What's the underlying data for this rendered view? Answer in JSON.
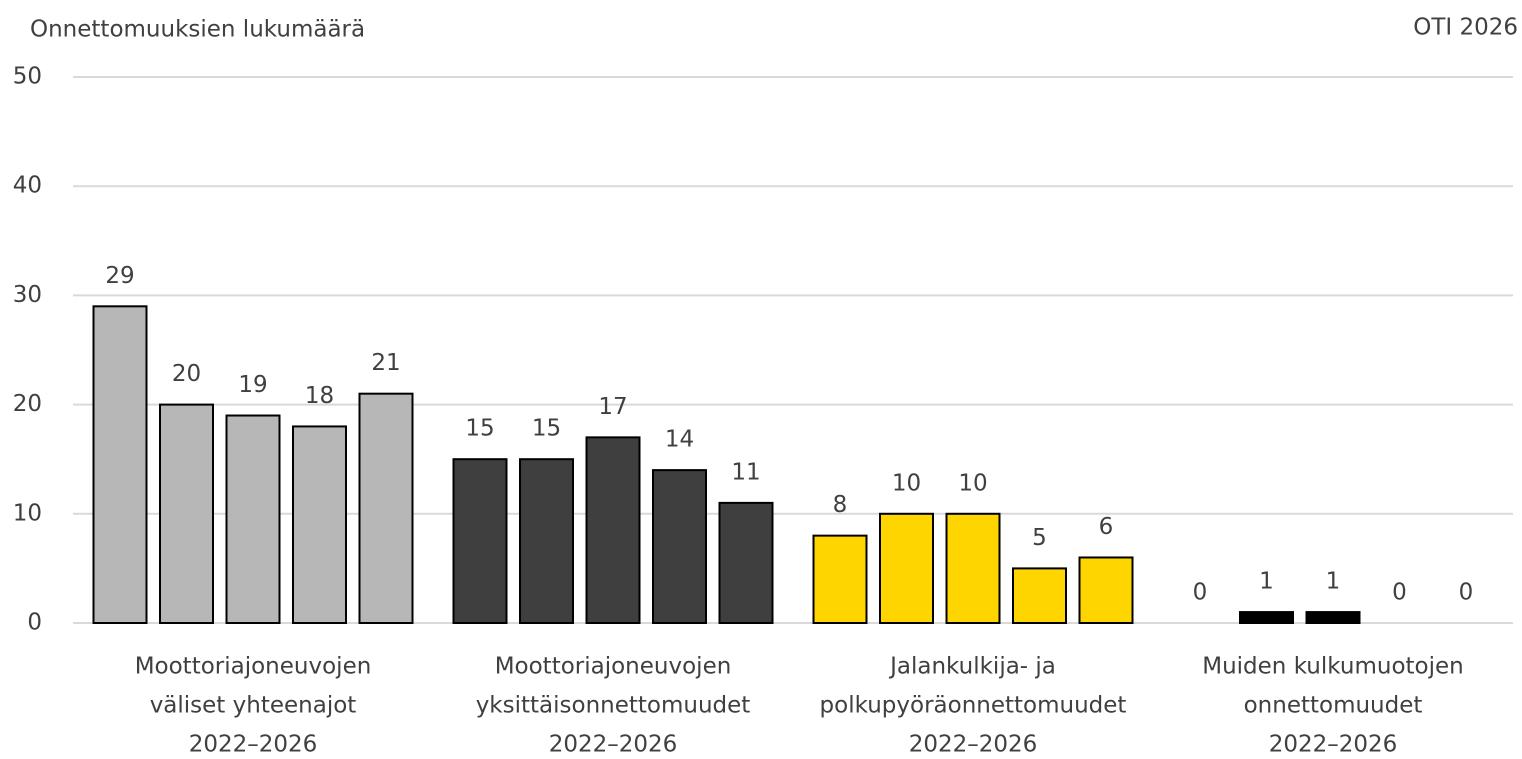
{
  "chart_data": {
    "type": "bar",
    "y_axis_title": "Onnettomuuksien lukumäärä",
    "source": "OTI 2026",
    "groups": [
      {
        "label": [
          "Moottoriajoneuvojen",
          "väliset yhteenajot",
          "2022–2026"
        ],
        "color": "#b7b7b7",
        "values": [
          29,
          20,
          19,
          18,
          21
        ]
      },
      {
        "label": [
          "Moottoriajoneuvojen",
          "yksittäisonnettomuudet",
          "2022–2026"
        ],
        "color": "#3f3f3f",
        "values": [
          15,
          15,
          17,
          14,
          11
        ]
      },
      {
        "label": [
          "Jalankulkija- ja",
          "polkupyöräonnettomuudet",
          "2022–2026"
        ],
        "color": "#ffd500",
        "values": [
          8,
          10,
          10,
          5,
          6
        ]
      },
      {
        "label": [
          "Muiden kulkumuotojen",
          "onnettomuudet",
          "2022–2026"
        ],
        "color": "#000000",
        "values": [
          0,
          1,
          1,
          0,
          0
        ]
      }
    ],
    "ylim": [
      0,
      50
    ],
    "yticks": [
      0,
      10,
      20,
      30,
      40,
      50
    ],
    "grid": true
  }
}
